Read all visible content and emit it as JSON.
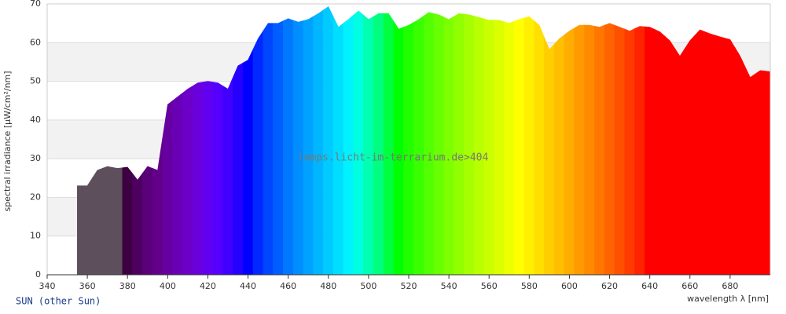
{
  "chart_data": {
    "type": "area",
    "ylabel": "spectral irradiance [µW/cm²/nm]",
    "xlabel": "wavelength λ [nm]",
    "watermark": "lamps.licht-im-terrarium.de>404",
    "caption": "SUN (other Sun)",
    "x": [
      355,
      360,
      365,
      370,
      375,
      380,
      385,
      390,
      395,
      400,
      405,
      410,
      415,
      420,
      425,
      430,
      435,
      440,
      445,
      450,
      455,
      460,
      465,
      470,
      475,
      480,
      485,
      490,
      495,
      500,
      505,
      510,
      515,
      520,
      525,
      530,
      535,
      540,
      545,
      550,
      555,
      560,
      565,
      570,
      575,
      580,
      585,
      590,
      595,
      600,
      605,
      610,
      615,
      620,
      625,
      630,
      635,
      640,
      645,
      650,
      655,
      660,
      665,
      670,
      675,
      680,
      685,
      690,
      695,
      700
    ],
    "values": [
      23,
      23,
      27,
      28,
      27.5,
      27.8,
      24.5,
      28,
      27,
      44,
      46,
      48,
      49.6,
      50,
      49.6,
      48,
      54,
      55.5,
      61,
      65,
      65,
      66.2,
      65.3,
      66,
      67.5,
      69.3,
      64,
      66,
      68.2,
      66,
      67.5,
      67.5,
      63.5,
      64.5,
      66,
      67.8,
      67.2,
      66,
      67.5,
      67.2,
      66.5,
      65.8,
      65.8,
      65,
      66,
      66.7,
      64.5,
      58.2,
      61,
      63,
      64.5,
      64.5,
      64,
      65,
      64,
      63,
      64.2,
      64,
      62.8,
      60.5,
      56.5,
      60.5,
      63.3,
      62.3,
      61.5,
      60.8,
      56.5,
      51,
      52.8,
      52.5
    ],
    "colors": [
      "#5e4f5c",
      "#5e4f5c",
      "#5e4f5c",
      "#5e4f5c",
      "#5e4f5c",
      "#3d0040",
      "#4d0060",
      "#5a0078",
      "#62008a",
      "#6600a0",
      "#6a00b5",
      "#6d00c8",
      "#6a00db",
      "#6100f0",
      "#5500ff",
      "#4000ff",
      "#2500ff",
      "#0000ff",
      "#0028ff",
      "#0046ff",
      "#005eff",
      "#0077ff",
      "#008dff",
      "#00a2ff",
      "#00b6ff",
      "#00caff",
      "#00deff",
      "#00f2ff",
      "#00ffe0",
      "#00ffb0",
      "#00ff80",
      "#00ff40",
      "#00ff00",
      "#1fff00",
      "#3aff00",
      "#52ff00",
      "#68ff00",
      "#7dff00",
      "#92ff00",
      "#a5ff00",
      "#b8ff00",
      "#caff00",
      "#dcff00",
      "#eeff00",
      "#ffff00",
      "#fff000",
      "#ffdf00",
      "#ffce00",
      "#ffbe00",
      "#ffad00",
      "#ff9b00",
      "#ff8a00",
      "#ff7700",
      "#ff6400",
      "#ff5000",
      "#ff3b00",
      "#ff2300",
      "#ff0000",
      "#ff0000",
      "#ff0000",
      "#ff0000",
      "#ff0000",
      "#ff0000",
      "#ff0000",
      "#ff0000",
      "#ff0000",
      "#ff0000",
      "#ff0000",
      "#ff0000",
      "#ff0000"
    ],
    "xlim": [
      340,
      700
    ],
    "ylim": [
      0,
      70
    ],
    "xticks": [
      340,
      360,
      380,
      400,
      420,
      440,
      460,
      480,
      500,
      520,
      540,
      560,
      580,
      600,
      620,
      640,
      660,
      680
    ],
    "yticks": [
      0,
      10,
      20,
      30,
      40,
      50,
      60,
      70
    ],
    "grid": true
  }
}
